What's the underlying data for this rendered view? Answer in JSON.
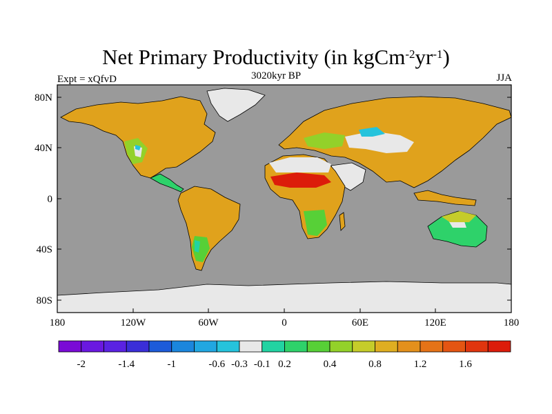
{
  "title": {
    "main": "Net Primary Productivity (in kgCm",
    "sup1": "-2",
    "mid": "yr",
    "sup2": "-1",
    "end": ")"
  },
  "subtitle": "3020kyr BP",
  "left_label": "Expt = xQfvD",
  "right_label": "JJA",
  "map": {
    "ocean_color": "#9a9a9a",
    "y_ticks": [
      "80N",
      "40N",
      "0",
      "40S",
      "80S"
    ],
    "x_ticks": [
      "180",
      "120W",
      "60W",
      "0",
      "60E",
      "120E",
      "180"
    ]
  },
  "colorbar": {
    "colors": [
      "#7a0ad6",
      "#6a18e0",
      "#5a22e2",
      "#3a2ed8",
      "#1d5bd9",
      "#1b86dd",
      "#21a7e1",
      "#25c3dc",
      "#e8e8e8",
      "#22d3a2",
      "#2ed26a",
      "#57d037",
      "#93d12a",
      "#c5cc2a",
      "#dfae21",
      "#e3901c",
      "#e57317",
      "#e45512",
      "#e0350e",
      "#dc1c0a"
    ],
    "labels": [
      "-2",
      "-1.4",
      "-1",
      "-0.6",
      "-0.3",
      "-0.1",
      "0.2",
      "0.4",
      "0.8",
      "1.2",
      "1.6"
    ]
  }
}
